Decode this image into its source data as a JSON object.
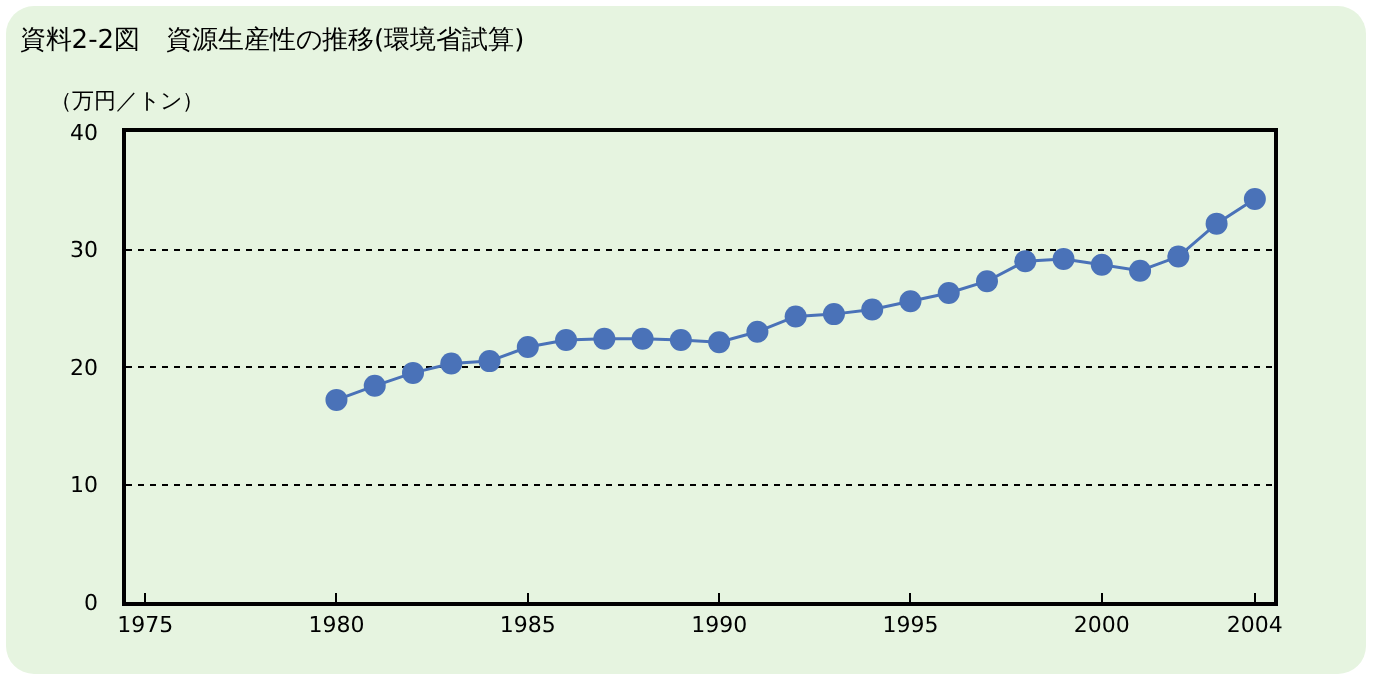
{
  "chart_data": {
    "type": "line",
    "title": "資料2-2図　資源生産性の推移(環境省試算)",
    "ylabel": "（万円／トン）",
    "x": [
      1980,
      1981,
      1982,
      1983,
      1984,
      1985,
      1986,
      1987,
      1988,
      1989,
      1990,
      1991,
      1992,
      1993,
      1994,
      1995,
      1996,
      1997,
      1998,
      1999,
      2000,
      2001,
      2002,
      2003,
      2004
    ],
    "series": [
      {
        "color": "#4a72b8",
        "values": [
          17.2,
          18.4,
          19.5,
          20.3,
          20.5,
          21.7,
          22.3,
          22.4,
          22.4,
          22.3,
          22.1,
          23.0,
          24.3,
          24.5,
          24.9,
          25.6,
          26.3,
          27.3,
          29.0,
          29.2,
          28.7,
          28.2,
          29.4,
          32.2,
          34.3
        ]
      }
    ],
    "xlim": [
      1974.5,
      2004.5
    ],
    "xticks": [
      1975,
      1980,
      1985,
      1990,
      1995,
      2000,
      2004
    ],
    "ylim": [
      0,
      40
    ],
    "yticks": [
      0,
      10,
      20,
      30,
      40
    ],
    "grid": "y",
    "marker": "circle",
    "line_style": "solid"
  }
}
